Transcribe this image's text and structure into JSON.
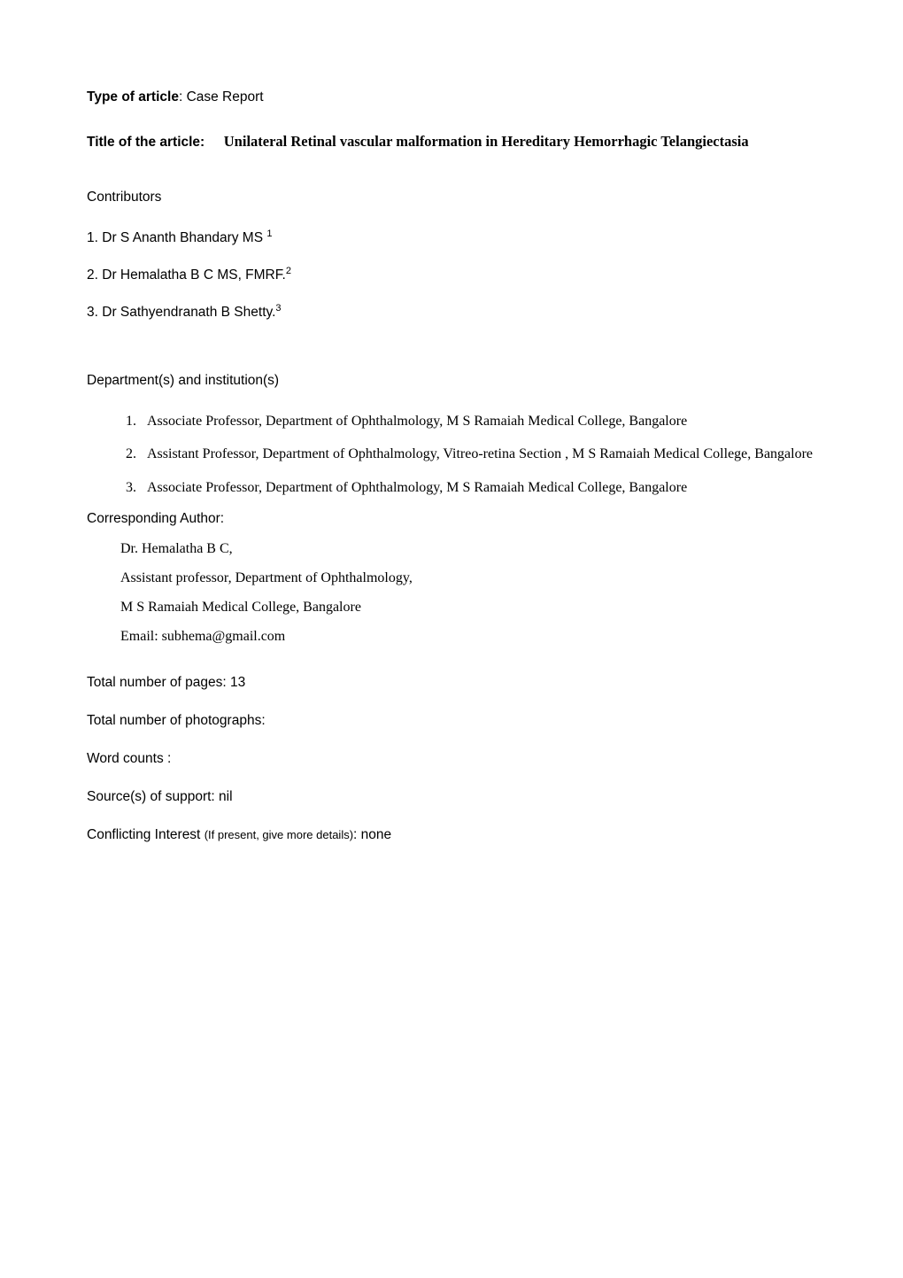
{
  "type_of_article": {
    "label": "Type of article",
    "value": "Case Report"
  },
  "title": {
    "label": "Title of the article:",
    "value": "Unilateral Retinal vascular malformation in Hereditary Hemorrhagic Telangiectasia"
  },
  "contributors": {
    "heading": "Contributors",
    "items": [
      {
        "num": "1.",
        "name": "Dr S Ananth Bhandary MS",
        "sup": "1"
      },
      {
        "num": "2.",
        "name": " Dr Hemalatha B C  MS, FMRF.",
        "sup": "2"
      },
      {
        "num": "3.",
        "name": "Dr Sathyendranath B Shetty.",
        "sup": "3"
      }
    ]
  },
  "departments": {
    "heading": "Department(s) and institution(s)",
    "items": [
      "Associate Professor, Department of Ophthalmology, M S Ramaiah Medical College, Bangalore",
      "Assistant Professor, Department of Ophthalmology,  Vitreo-retina Section , M S Ramaiah Medical College, Bangalore",
      "Associate Professor, Department of Ophthalmology, M S Ramaiah Medical College, Bangalore"
    ]
  },
  "corresponding_author": {
    "heading": "Corresponding Author:",
    "lines": [
      "Dr. Hemalatha B C,",
      "Assistant professor, Department of Ophthalmology,",
      "M S Ramaiah Medical College, Bangalore",
      "Email: subhema@gmail.com"
    ]
  },
  "meta": {
    "pages": {
      "label": "Total number of pages:",
      "value": "13"
    },
    "photos": {
      "label": "Total number of photographs:",
      "value": ""
    },
    "words": {
      "label": "Word counts :",
      "value": ""
    },
    "support": {
      "label": "Source(s) of support:",
      "value": "nil"
    },
    "conflict": {
      "label": "Conflicting Interest",
      "paren": "(If present, give more details)",
      "value": "none"
    }
  }
}
